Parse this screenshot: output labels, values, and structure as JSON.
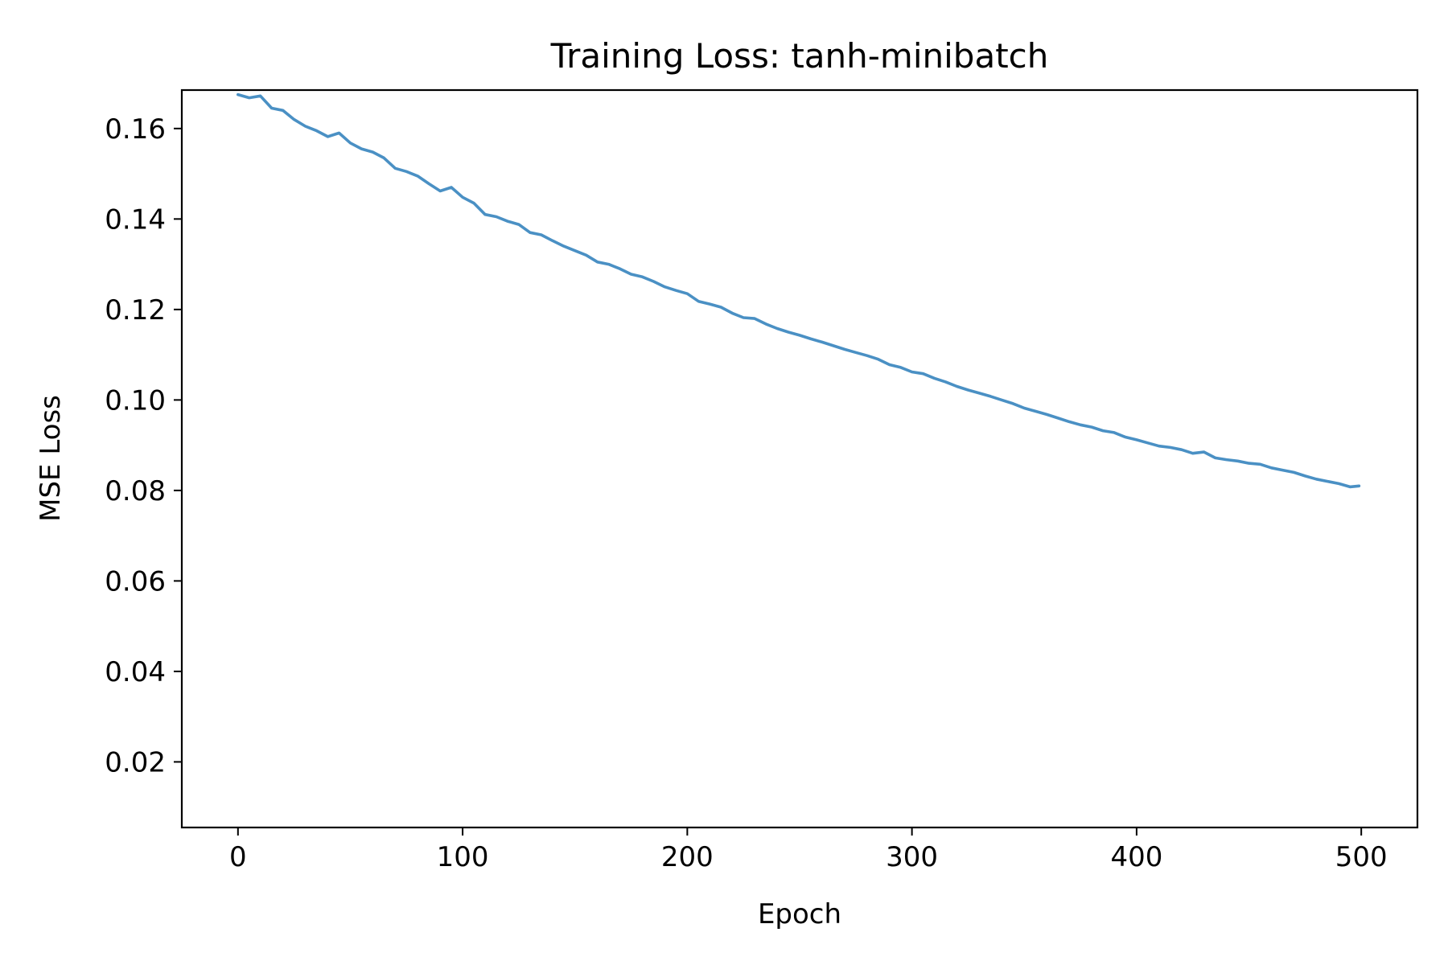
{
  "chart_data": {
    "type": "line",
    "title": "Training Loss: tanh-minibatch",
    "xlabel": "Epoch",
    "ylabel": "MSE Loss",
    "xlim": [
      -25,
      525
    ],
    "ylim": [
      0.0055,
      0.1685
    ],
    "xticks": [
      0,
      100,
      200,
      300,
      400,
      500
    ],
    "xtick_labels": [
      "0",
      "100",
      "200",
      "300",
      "400",
      "500"
    ],
    "yticks": [
      0.02,
      0.04,
      0.06,
      0.08,
      0.1,
      0.12,
      0.14,
      0.16
    ],
    "ytick_labels": [
      "0.02",
      "0.04",
      "0.06",
      "0.08",
      "0.10",
      "0.12",
      "0.14",
      "0.16"
    ],
    "grid": false,
    "series": [
      {
        "color": "#4a90c4",
        "x": [
          0,
          5,
          10,
          15,
          20,
          25,
          30,
          35,
          40,
          45,
          50,
          55,
          60,
          65,
          70,
          75,
          80,
          85,
          90,
          95,
          100,
          105,
          110,
          115,
          120,
          125,
          130,
          135,
          140,
          145,
          150,
          155,
          160,
          165,
          170,
          175,
          180,
          185,
          190,
          195,
          200,
          205,
          210,
          215,
          220,
          225,
          230,
          235,
          240,
          245,
          250,
          255,
          260,
          265,
          270,
          275,
          280,
          285,
          290,
          295,
          300,
          305,
          310,
          315,
          320,
          325,
          330,
          335,
          340,
          345,
          350,
          355,
          360,
          365,
          370,
          375,
          380,
          385,
          390,
          395,
          400,
          405,
          410,
          415,
          420,
          425,
          430,
          435,
          440,
          445,
          450,
          455,
          460,
          465,
          470,
          475,
          480,
          485,
          490,
          495,
          499
        ],
        "y": [
          0.1675,
          0.1668,
          0.1672,
          0.1645,
          0.164,
          0.162,
          0.1605,
          0.1595,
          0.1582,
          0.159,
          0.1568,
          0.1555,
          0.1548,
          0.1535,
          0.1512,
          0.1505,
          0.1495,
          0.1478,
          0.1462,
          0.147,
          0.1448,
          0.1435,
          0.141,
          0.1405,
          0.1395,
          0.1388,
          0.137,
          0.1365,
          0.1352,
          0.134,
          0.133,
          0.132,
          0.1305,
          0.13,
          0.129,
          0.1278,
          0.1272,
          0.1262,
          0.125,
          0.1242,
          0.1235,
          0.1218,
          0.1212,
          0.1205,
          0.1192,
          0.1182,
          0.118,
          0.1168,
          0.1158,
          0.115,
          0.1143,
          0.1135,
          0.1128,
          0.112,
          0.1112,
          0.1105,
          0.1098,
          0.109,
          0.1078,
          0.1072,
          0.1062,
          0.1058,
          0.1048,
          0.104,
          0.103,
          0.1022,
          0.1015,
          0.1008,
          0.1,
          0.0992,
          0.0982,
          0.0975,
          0.0968,
          0.096,
          0.0952,
          0.0945,
          0.094,
          0.0932,
          0.0928,
          0.0918,
          0.0912,
          0.0905,
          0.0898,
          0.0895,
          0.089,
          0.0882,
          0.0885,
          0.0872,
          0.0868,
          0.0865,
          0.086,
          0.0858,
          0.085,
          0.0845,
          0.084,
          0.0832,
          0.0825,
          0.082,
          0.0815,
          0.0808,
          0.081
        ]
      }
    ]
  }
}
